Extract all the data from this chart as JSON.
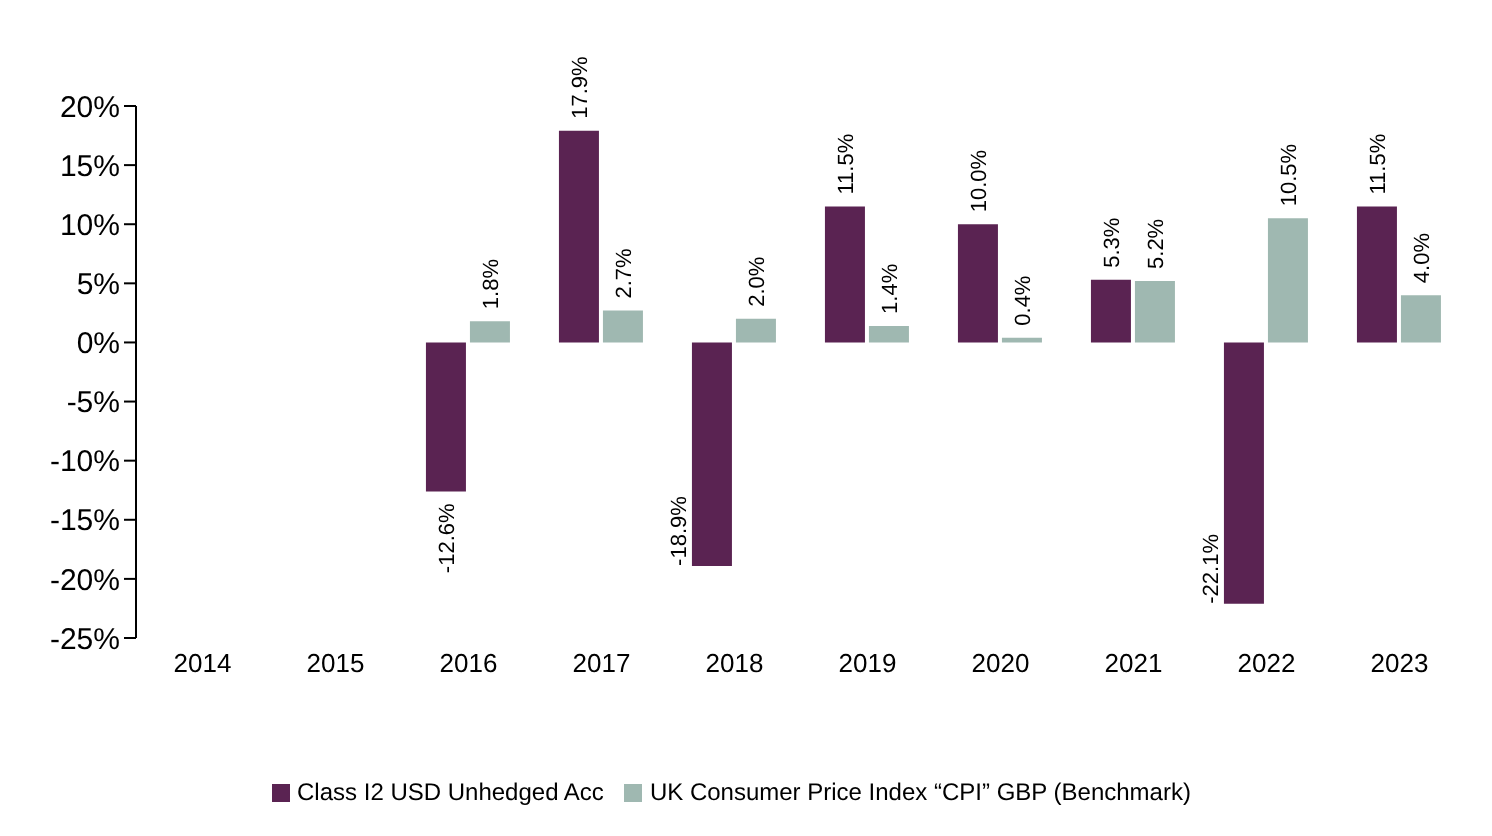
{
  "chart_data": {
    "type": "bar",
    "categories": [
      "2014",
      "2015",
      "2016",
      "2017",
      "2018",
      "2019",
      "2020",
      "2021",
      "2022",
      "2023"
    ],
    "series": [
      {
        "name": "Class I2 USD Unhedged Acc",
        "color": "#5a2352",
        "values": [
          null,
          null,
          -12.6,
          17.9,
          -18.9,
          11.5,
          10.0,
          5.3,
          -22.1,
          11.5
        ],
        "value_labels": [
          null,
          null,
          "-12.6%",
          "17.9%",
          "-18.9%",
          "11.5%",
          "10.0%",
          "5.3%",
          "-22.1%",
          "11.5%"
        ]
      },
      {
        "name": "UK Consumer Price Index “CPI” GBP (Benchmark)",
        "color": "#9fb8b1",
        "values": [
          null,
          null,
          1.8,
          2.7,
          2.0,
          1.4,
          0.4,
          5.2,
          10.5,
          4.0
        ],
        "value_labels": [
          null,
          null,
          "1.8%",
          "2.7%",
          "2.0%",
          "1.4%",
          "0.4%",
          "5.2%",
          "10.5%",
          "4.0%"
        ]
      }
    ],
    "ylim": [
      -25,
      20
    ],
    "yticks": [
      {
        "value": -25,
        "label": "-25%"
      },
      {
        "value": -20,
        "label": "-20%"
      },
      {
        "value": -15,
        "label": "-15%"
      },
      {
        "value": -10,
        "label": "-10%"
      },
      {
        "value": -5,
        "label": "-5%"
      },
      {
        "value": 0,
        "label": "0%"
      },
      {
        "value": 5,
        "label": "5%"
      },
      {
        "value": 10,
        "label": "10%"
      },
      {
        "value": 15,
        "label": "15%"
      },
      {
        "value": 20,
        "label": "20%"
      }
    ],
    "grid": false,
    "legend": "bottom"
  }
}
